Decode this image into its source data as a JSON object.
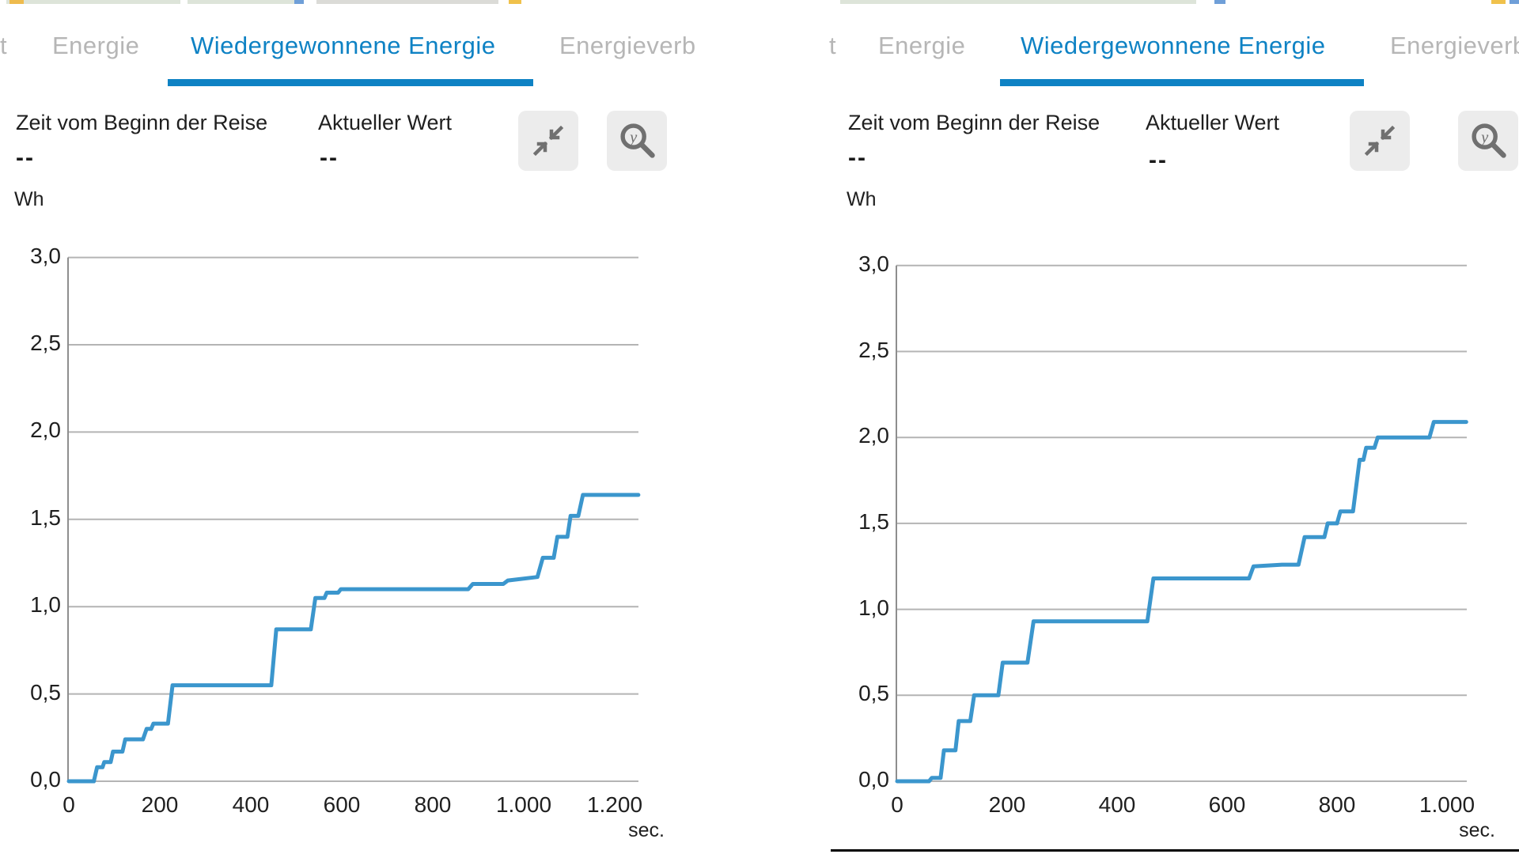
{
  "colors": {
    "accent_blue": "#0e82c4",
    "line_blue": "#3b96cd",
    "grid_gray": "#b4b4b4",
    "axis_gray": "#8e8e8e",
    "inactive_tab_gray": "#b6b6b6",
    "text_dark": "#1f1f1f",
    "button_bg": "#ececec",
    "icon_gray": "#707070"
  },
  "icons": {
    "collapse": "collapse-arrows-icon",
    "zoom_y": "magnifier-y-icon"
  },
  "panels": [
    {
      "tabs": {
        "cut_left": "t",
        "tab1": "Energie",
        "tab2": "Wiedergewonnene Energie",
        "tab3": "Energieverb"
      },
      "active_tab": "Wiedergewonnene Energie",
      "info": {
        "time_label": "Zeit vom Beginn der Reise",
        "time_value": "--",
        "value_label": "Aktueller Wert",
        "value_value": "--"
      },
      "y_unit": "Wh",
      "x_unit": "sec."
    },
    {
      "tabs": {
        "cut_left": "t",
        "tab1": "Energie",
        "tab2": "Wiedergewonnene Energie",
        "tab3": "Energieverb"
      },
      "active_tab": "Wiedergewonnene Energie",
      "info": {
        "time_label": "Zeit vom Beginn der Reise",
        "time_value": "--",
        "value_label": "Aktueller Wert",
        "value_value": "--"
      },
      "y_unit": "Wh",
      "x_unit": "sec."
    }
  ],
  "chart_data": [
    {
      "type": "line",
      "title": "Wiedergewonnene Energie",
      "xlabel": "sec.",
      "ylabel": "Wh",
      "xlim": [
        0,
        1252
      ],
      "ylim": [
        0,
        3.0
      ],
      "grid": true,
      "legend": false,
      "x_ticks": [
        0,
        200,
        400,
        600,
        800,
        1000,
        1200
      ],
      "x_tick_labels": [
        "0",
        "200",
        "400",
        "600",
        "800",
        "1.000",
        "1.200"
      ],
      "y_ticks": [
        0,
        0.5,
        1.0,
        1.5,
        2.0,
        2.5,
        3.0
      ],
      "y_tick_labels": [
        "0,0",
        "0,5",
        "1,0",
        "1,5",
        "2,0",
        "2,5",
        "3,0"
      ],
      "series": [
        {
          "name": "Wiedergewonnene Energie",
          "points": [
            [
              0,
              0
            ],
            [
              55,
              0
            ],
            [
              62,
              0.08
            ],
            [
              74,
              0.08
            ],
            [
              78,
              0.11
            ],
            [
              92,
              0.11
            ],
            [
              97,
              0.17
            ],
            [
              118,
              0.17
            ],
            [
              124,
              0.24
            ],
            [
              163,
              0.24
            ],
            [
              171,
              0.3
            ],
            [
              181,
              0.3
            ],
            [
              186,
              0.33
            ],
            [
              218,
              0.33
            ],
            [
              228,
              0.55
            ],
            [
              445,
              0.55
            ],
            [
              456,
              0.87
            ],
            [
              532,
              0.87
            ],
            [
              542,
              1.05
            ],
            [
              562,
              1.05
            ],
            [
              567,
              1.08
            ],
            [
              592,
              1.08
            ],
            [
              598,
              1.1
            ],
            [
              878,
              1.1
            ],
            [
              888,
              1.13
            ],
            [
              955,
              1.13
            ],
            [
              965,
              1.15
            ],
            [
              1030,
              1.17
            ],
            [
              1042,
              1.28
            ],
            [
              1066,
              1.28
            ],
            [
              1074,
              1.4
            ],
            [
              1096,
              1.4
            ],
            [
              1103,
              1.52
            ],
            [
              1120,
              1.52
            ],
            [
              1130,
              1.64
            ],
            [
              1252,
              1.64
            ]
          ]
        }
      ]
    },
    {
      "type": "line",
      "title": "Wiedergewonnene Energie",
      "xlabel": "sec.",
      "ylabel": "Wh",
      "xlim": [
        0,
        1035
      ],
      "ylim": [
        0,
        3.0
      ],
      "grid": true,
      "legend": false,
      "x_ticks": [
        0,
        200,
        400,
        600,
        800,
        1000
      ],
      "x_tick_labels": [
        "0",
        "200",
        "400",
        "600",
        "800",
        "1.000"
      ],
      "y_ticks": [
        0,
        0.5,
        1.0,
        1.5,
        2.0,
        2.5,
        3.0
      ],
      "y_tick_labels": [
        "0,0",
        "0,5",
        "1,0",
        "1,5",
        "2,0",
        "2,5",
        "3,0"
      ],
      "series": [
        {
          "name": "Wiedergewonnene Energie",
          "points": [
            [
              0,
              0
            ],
            [
              58,
              0
            ],
            [
              63,
              0.02
            ],
            [
              79,
              0.02
            ],
            [
              85,
              0.18
            ],
            [
              106,
              0.18
            ],
            [
              112,
              0.35
            ],
            [
              133,
              0.35
            ],
            [
              140,
              0.5
            ],
            [
              184,
              0.5
            ],
            [
              192,
              0.69
            ],
            [
              237,
              0.69
            ],
            [
              248,
              0.93
            ],
            [
              455,
              0.93
            ],
            [
              466,
              1.18
            ],
            [
              640,
              1.18
            ],
            [
              648,
              1.25
            ],
            [
              700,
              1.26
            ],
            [
              730,
              1.26
            ],
            [
              741,
              1.42
            ],
            [
              777,
              1.42
            ],
            [
              783,
              1.5
            ],
            [
              800,
              1.5
            ],
            [
              806,
              1.57
            ],
            [
              829,
              1.57
            ],
            [
              841,
              1.87
            ],
            [
              848,
              1.87
            ],
            [
              853,
              1.94
            ],
            [
              868,
              1.94
            ],
            [
              874,
              2.0
            ],
            [
              968,
              2.0
            ],
            [
              976,
              2.09
            ],
            [
              1035,
              2.09
            ]
          ]
        }
      ]
    }
  ]
}
